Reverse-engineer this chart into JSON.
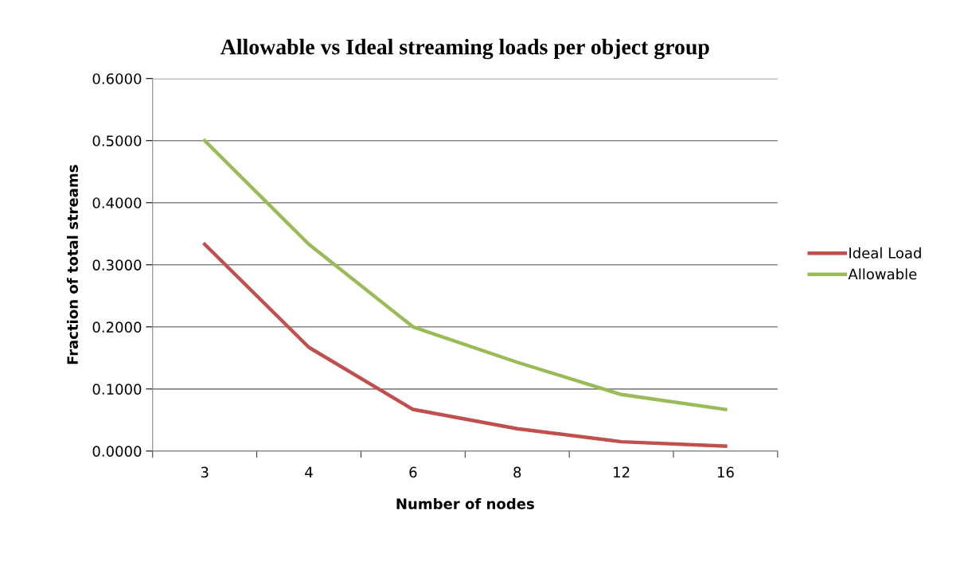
{
  "chart_data": {
    "type": "line",
    "title": "Allowable vs Ideal streaming loads per object group",
    "xlabel": "Number of nodes",
    "ylabel": "Fraction of total streams",
    "categories": [
      "3",
      "4",
      "6",
      "8",
      "12",
      "16"
    ],
    "series": [
      {
        "name": "Ideal Load",
        "color": "#c0504d",
        "values": [
          0.333,
          0.167,
          0.067,
          0.036,
          0.015,
          0.008
        ]
      },
      {
        "name": "Allowable",
        "color": "#9bbb59",
        "values": [
          0.5,
          0.333,
          0.2,
          0.143,
          0.091,
          0.067
        ]
      }
    ],
    "ylim": [
      0,
      0.6
    ],
    "yticks": [
      {
        "value": 0,
        "label": "0.0000"
      },
      {
        "value": 0.1,
        "label": "0.1000"
      },
      {
        "value": 0.2,
        "label": "0.2000"
      },
      {
        "value": 0.3,
        "label": "0.3000"
      },
      {
        "value": 0.4,
        "label": "0.4000"
      },
      {
        "value": 0.5,
        "label": "0.5000"
      },
      {
        "value": 0.6,
        "label": "0.6000"
      }
    ],
    "grid": "y",
    "legend": "right",
    "marker": "none",
    "line_style": "solid"
  }
}
